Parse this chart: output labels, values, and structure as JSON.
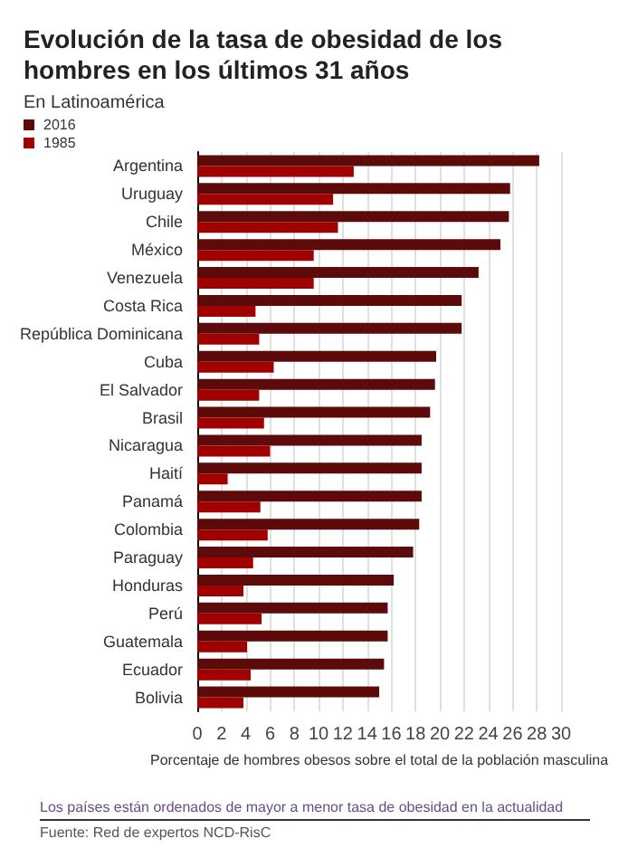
{
  "chart_data": {
    "type": "bar",
    "orientation": "horizontal",
    "title": "Evolución de la tasa de obesidad de los hombres en los últimos 31 años",
    "subtitle": "En Latinoamérica",
    "xlabel": "Porcentaje de hombres obesos sobre el total de la población masculina",
    "categories": [
      "Argentina",
      "Uruguay",
      "Chile",
      "México",
      "Venezuela",
      "Costa Rica",
      "República Dominicana",
      "Cuba",
      "El Salvador",
      "Brasil",
      "Nicaragua",
      "Haití",
      "Panamá",
      "Colombia",
      "Paraguay",
      "Honduras",
      "Perú",
      "Guatemala",
      "Ecuador",
      "Bolivia"
    ],
    "series": [
      {
        "name": "2016",
        "color": "#5c0a0a",
        "values": [
          28.2,
          25.8,
          25.7,
          25.0,
          23.2,
          21.8,
          21.8,
          19.7,
          19.6,
          19.2,
          18.5,
          18.5,
          18.5,
          18.3,
          17.8,
          16.2,
          15.7,
          15.7,
          15.4,
          15.0
        ]
      },
      {
        "name": "1985",
        "color": "#a00000",
        "values": [
          12.9,
          11.2,
          11.6,
          9.6,
          9.6,
          4.8,
          5.1,
          6.3,
          5.1,
          5.5,
          6.0,
          2.5,
          5.2,
          5.8,
          4.6,
          3.8,
          5.3,
          4.1,
          4.4,
          3.8
        ]
      }
    ],
    "xlim": [
      0,
      30
    ],
    "xticks": [
      0,
      2,
      4,
      6,
      8,
      10,
      12,
      14,
      16,
      18,
      20,
      22,
      24,
      26,
      28,
      30
    ],
    "grid": "x",
    "legend": "top left",
    "annotations": [
      "Los países están ordenados de mayor a menor tasa de obesidad en la actualidad",
      "Fuente: Red de expertos NCD-RisC"
    ]
  }
}
